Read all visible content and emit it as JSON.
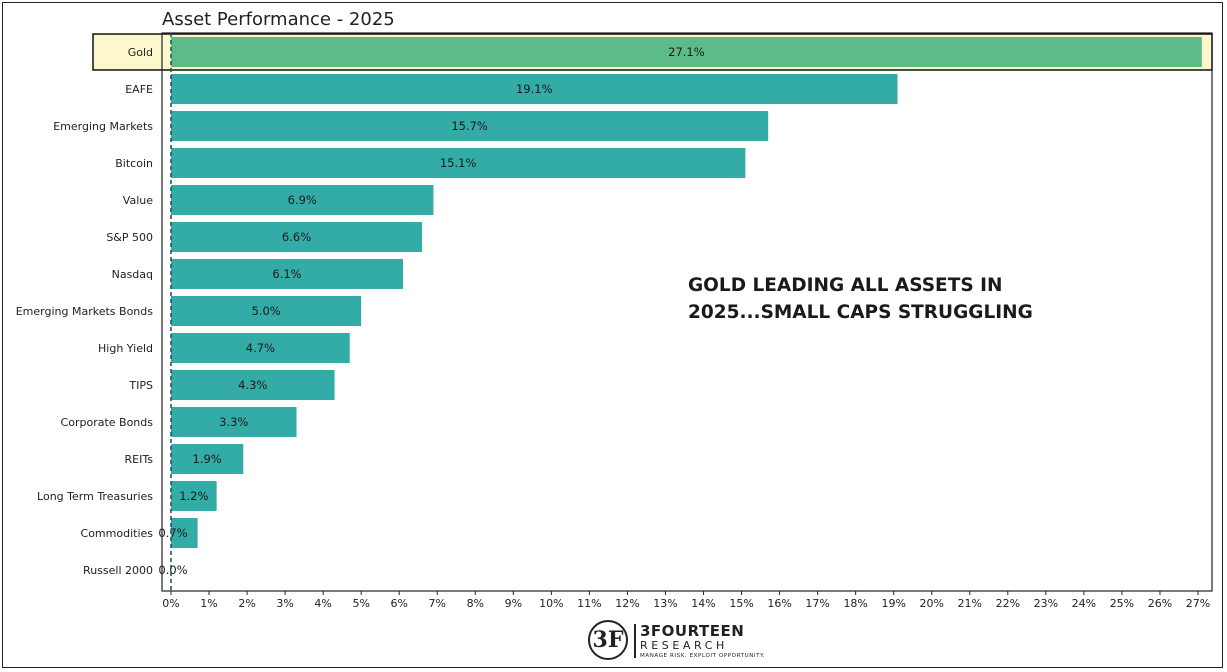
{
  "chart_data": {
    "type": "bar",
    "orientation": "horizontal",
    "title": "Asset Performance - 2025",
    "categories": [
      "Gold",
      "EAFE",
      "Emerging Markets",
      "Bitcoin",
      "Value",
      "S&P 500",
      "Nasdaq",
      "Emerging Markets Bonds",
      "High Yield",
      "TIPS",
      "Corporate Bonds",
      "REITs",
      "Long Term Treasuries",
      "Commodities",
      "Russell 2000"
    ],
    "values": [
      27.1,
      19.1,
      15.7,
      15.1,
      6.9,
      6.6,
      6.1,
      5.0,
      4.7,
      4.3,
      3.3,
      1.9,
      1.2,
      0.7,
      0.0
    ],
    "value_labels": [
      "27.1%",
      "19.1%",
      "15.7%",
      "15.1%",
      "6.9%",
      "6.6%",
      "6.1%",
      "5.0%",
      "4.7%",
      "4.3%",
      "3.3%",
      "1.9%",
      "1.2%",
      "0.7%",
      "0.0%"
    ],
    "xlim": [
      0,
      27.5
    ],
    "x_ticks": [
      0,
      1,
      2,
      3,
      4,
      5,
      6,
      7,
      8,
      9,
      10,
      11,
      12,
      13,
      14,
      15,
      16,
      17,
      18,
      19,
      20,
      21,
      22,
      23,
      24,
      25,
      26,
      27
    ],
    "x_tick_labels": [
      "0%",
      "1%",
      "2%",
      "3%",
      "4%",
      "5%",
      "6%",
      "7%",
      "8%",
      "9%",
      "10%",
      "11%",
      "12%",
      "13%",
      "14%",
      "15%",
      "16%",
      "17%",
      "18%",
      "19%",
      "20%",
      "21%",
      "22%",
      "23%",
      "24%",
      "25%",
      "26%",
      "27%"
    ],
    "highlight_category": "Gold",
    "annotation_lines": [
      "GOLD LEADING ALL ASSETS IN",
      "2025...SMALL CAPS STRUGGLING"
    ],
    "grid": false,
    "colors": {
      "bar": "#33aba7",
      "highlight_bar": "#5cbb86",
      "highlight_background": "#fdf8cc",
      "zero_line": "#1a4a5a"
    }
  },
  "logo": {
    "mark": "3F",
    "name": "3FOURTEEN",
    "sub": "RESEARCH",
    "tagline": "MANAGE RISK. EXPLOIT OPPORTUNITY."
  }
}
